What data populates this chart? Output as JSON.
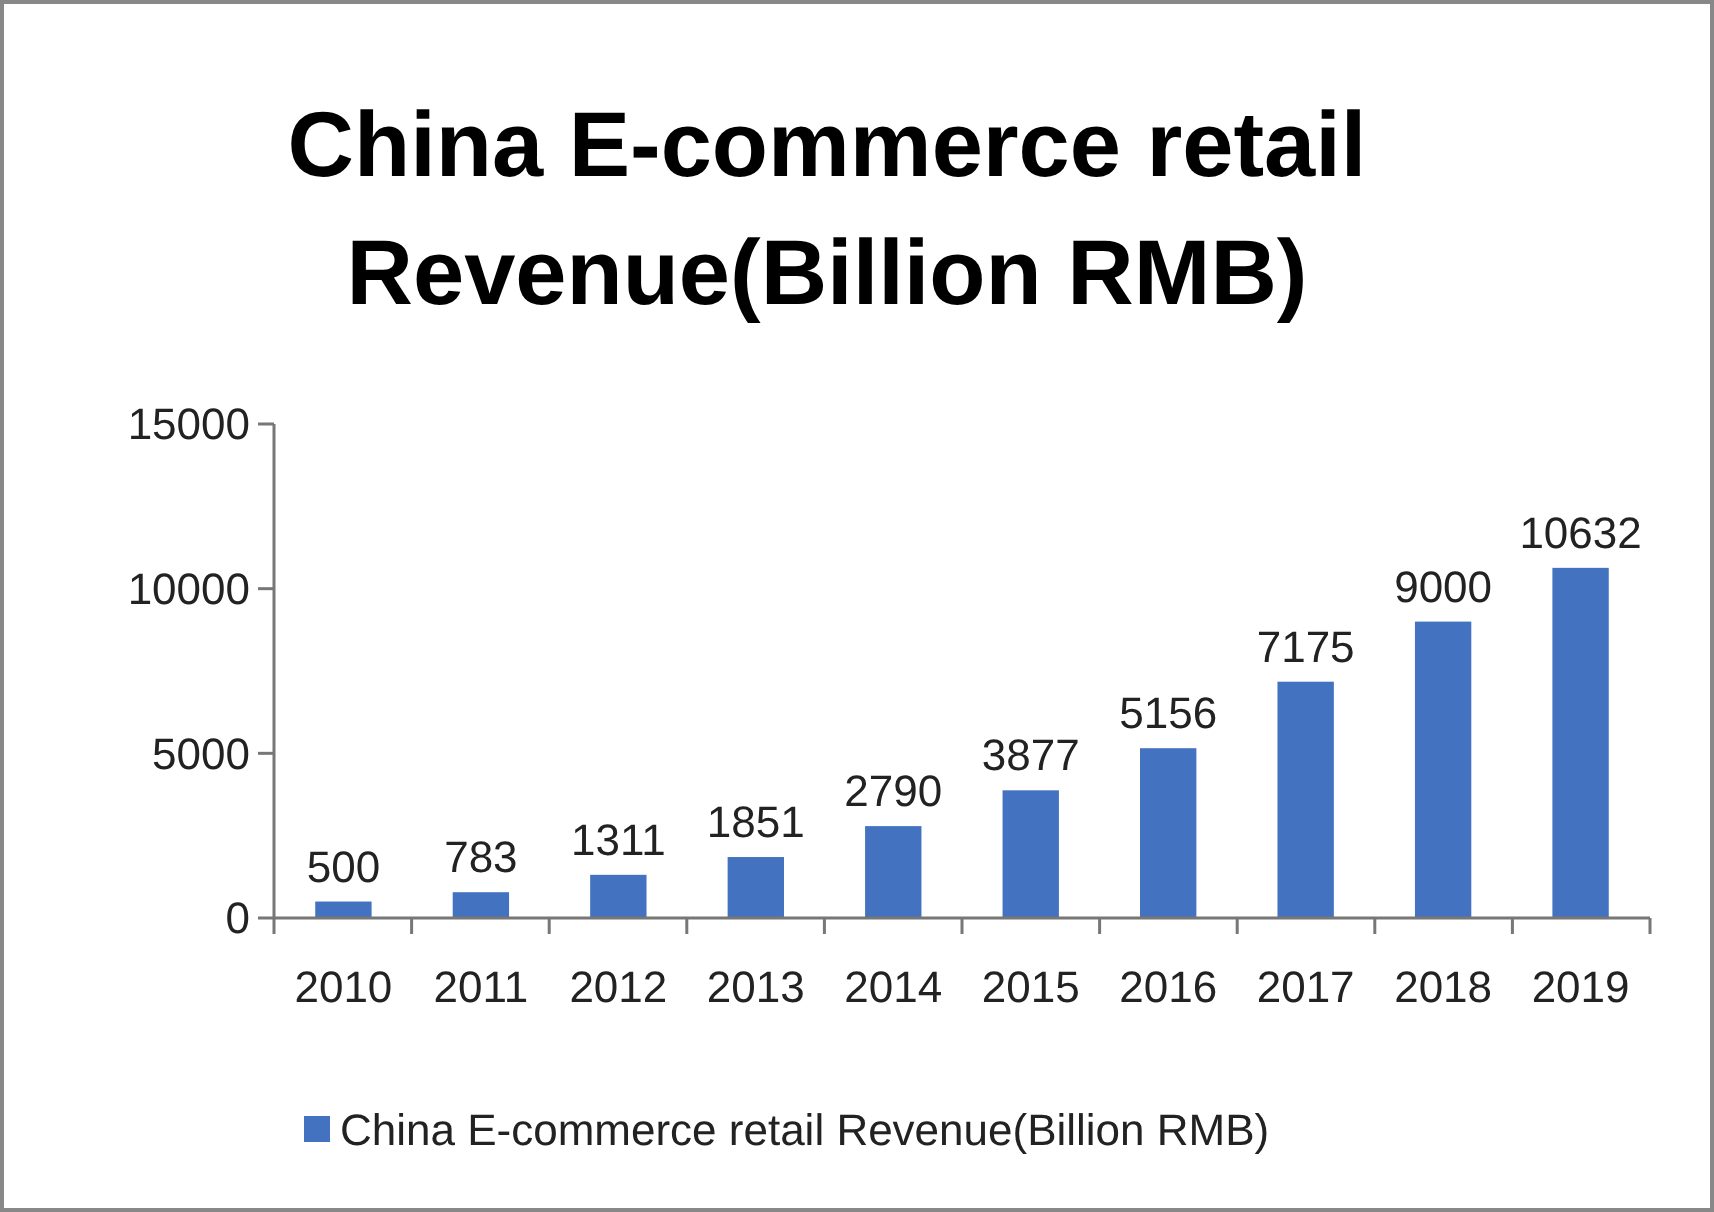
{
  "chart_data": {
    "type": "bar",
    "title": "China E-commerce retail Revenue(Billion RMB)",
    "categories": [
      "2010",
      "2011",
      "2012",
      "2013",
      "2014",
      "2015",
      "2016",
      "2017",
      "2018",
      "2019"
    ],
    "series": [
      {
        "name": "China E-commerce retail Revenue(Billion RMB)",
        "color": "#4372c0",
        "values": [
          500,
          783,
          1311,
          1851,
          2790,
          3877,
          5156,
          7175,
          9000,
          10632
        ]
      }
    ],
    "ylim": [
      0,
      15000
    ],
    "yticks": [
      0,
      5000,
      10000,
      15000
    ],
    "grid": false,
    "legend": "bottom",
    "data_labels": true
  }
}
